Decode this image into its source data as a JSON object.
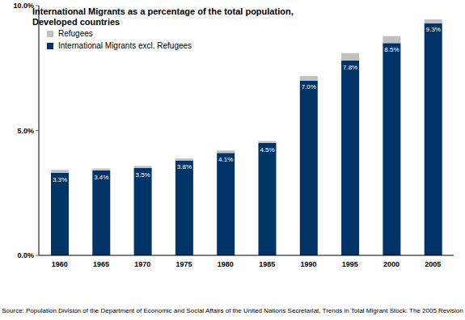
{
  "chart_data": {
    "type": "bar",
    "title": "International Migrants as a percentage of the total population, Developed countries",
    "source": "Source: Population Division of the Department of Economic and Social Affairs of the United Nations Secretariat, Trends in Total Migrant Stock: The 2005 Revision",
    "categories": [
      "1960",
      "1965",
      "1970",
      "1975",
      "1980",
      "1985",
      "1990",
      "1995",
      "2000",
      "2005"
    ],
    "series": [
      {
        "name": "International Migrants excl. Refugees",
        "color": "#003366",
        "values": [
          3.3,
          3.4,
          3.5,
          3.8,
          4.1,
          4.5,
          7.0,
          7.8,
          8.5,
          9.3
        ],
        "value_labels": [
          "3.3%",
          "3.4%",
          "3.5%",
          "3.8%",
          "4.1%",
          "4.5%",
          "7.0%",
          "7.8%",
          "8.5%",
          "9.3%"
        ]
      },
      {
        "name": "Refugees",
        "color": "#c0c0c0",
        "values": [
          0.12,
          0.08,
          0.08,
          0.08,
          0.1,
          0.08,
          0.18,
          0.3,
          0.28,
          0.15
        ]
      }
    ],
    "ylim": [
      0,
      10
    ],
    "yticks": [
      {
        "value": 0,
        "label": "0.0%"
      },
      {
        "value": 5,
        "label": "5.0%"
      },
      {
        "value": 10,
        "label": "10.0%"
      }
    ],
    "stacked": true,
    "data_labels": true,
    "legend": "top-left"
  }
}
